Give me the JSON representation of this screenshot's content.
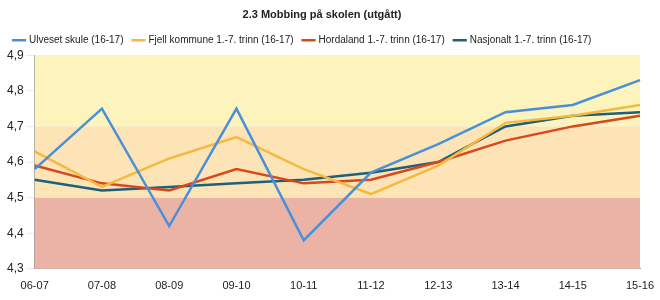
{
  "chart_data": {
    "type": "line",
    "title": "2.3 Mobbing på skolen (utgått)",
    "categories": [
      "06-07",
      "07-08",
      "08-09",
      "09-10",
      "10-11",
      "11-12",
      "12-13",
      "13-14",
      "14-15",
      "15-16"
    ],
    "series": [
      {
        "name": "Ulveset skule (16-17)",
        "color": "#4a90d9",
        "values": [
          4.58,
          4.75,
          4.42,
          4.75,
          4.38,
          4.57,
          4.65,
          4.74,
          4.76,
          4.83
        ]
      },
      {
        "name": "Fjell kommune 1.-7. trinn (16-17)",
        "color": "#f5b942",
        "values": [
          4.63,
          4.53,
          4.61,
          4.67,
          4.58,
          4.51,
          4.59,
          4.71,
          4.73,
          4.76
        ]
      },
      {
        "name": "Hordaland 1.-7. trinn (16-17)",
        "color": "#d9481c",
        "values": [
          4.59,
          4.54,
          4.52,
          4.58,
          4.54,
          4.55,
          4.6,
          4.66,
          4.7,
          4.73
        ]
      },
      {
        "name": "Nasjonalt 1.-7. trinn (16-17)",
        "color": "#1f5f7a",
        "values": [
          4.55,
          4.52,
          4.53,
          4.54,
          4.55,
          4.57,
          4.6,
          4.7,
          4.73,
          4.74
        ]
      }
    ],
    "ylim": [
      4.3,
      4.9
    ],
    "yticks": [
      {
        "value": 4.3,
        "label": "4,3"
      },
      {
        "value": 4.4,
        "label": "4,4"
      },
      {
        "value": 4.5,
        "label": "4,5"
      },
      {
        "value": 4.6,
        "label": "4,6"
      },
      {
        "value": 4.7,
        "label": "4,7"
      },
      {
        "value": 4.8,
        "label": "4,8"
      },
      {
        "value": 4.9,
        "label": "4,9"
      }
    ],
    "bands": [
      {
        "from": 4.3,
        "to": 4.5,
        "color": "#ebb3a6"
      },
      {
        "from": 4.5,
        "to": 4.7,
        "color": "#fce4b6"
      },
      {
        "from": 4.7,
        "to": 4.9,
        "color": "#fcf3bd"
      }
    ],
    "grid": true,
    "legend": "top",
    "marker": "none"
  }
}
